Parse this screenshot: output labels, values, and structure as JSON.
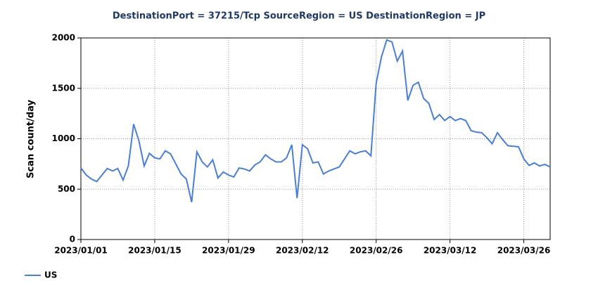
{
  "chart_data": {
    "type": "line",
    "title": "DestinationPort = 37215/Tcp SourceRegion = US DestinationRegion = JP",
    "y_label": "Scan count/day",
    "x": [
      "2023/01/01",
      "2023/01/02",
      "2023/01/03",
      "2023/01/04",
      "2023/01/05",
      "2023/01/06",
      "2023/01/07",
      "2023/01/08",
      "2023/01/09",
      "2023/01/10",
      "2023/01/11",
      "2023/01/12",
      "2023/01/13",
      "2023/01/14",
      "2023/01/15",
      "2023/01/16",
      "2023/01/17",
      "2023/01/18",
      "2023/01/19",
      "2023/01/20",
      "2023/01/21",
      "2023/01/22",
      "2023/01/23",
      "2023/01/24",
      "2023/01/25",
      "2023/01/26",
      "2023/01/27",
      "2023/01/28",
      "2023/01/29",
      "2023/01/30",
      "2023/01/31",
      "2023/02/01",
      "2023/02/02",
      "2023/02/03",
      "2023/02/04",
      "2023/02/05",
      "2023/02/06",
      "2023/02/07",
      "2023/02/08",
      "2023/02/09",
      "2023/02/10",
      "2023/02/11",
      "2023/02/12",
      "2023/02/13",
      "2023/02/14",
      "2023/02/15",
      "2023/02/16",
      "2023/02/17",
      "2023/02/18",
      "2023/02/19",
      "2023/02/20",
      "2023/02/21",
      "2023/02/22",
      "2023/02/23",
      "2023/02/24",
      "2023/02/25",
      "2023/02/26",
      "2023/02/27",
      "2023/02/28",
      "2023/03/01",
      "2023/03/02",
      "2023/03/03",
      "2023/03/04",
      "2023/03/05",
      "2023/03/06",
      "2023/03/07",
      "2023/03/08",
      "2023/03/09",
      "2023/03/10",
      "2023/03/11",
      "2023/03/12",
      "2023/03/13",
      "2023/03/14",
      "2023/03/15",
      "2023/03/16",
      "2023/03/17",
      "2023/03/18",
      "2023/03/19",
      "2023/03/20",
      "2023/03/21",
      "2023/03/22",
      "2023/03/23",
      "2023/03/24",
      "2023/03/25",
      "2023/03/26",
      "2023/03/27",
      "2023/03/28",
      "2023/03/29",
      "2023/03/30",
      "2023/03/31"
    ],
    "series": [
      {
        "name": "US",
        "color": "#4a7fd4",
        "values": [
          710,
          640,
          600,
          575,
          640,
          705,
          680,
          705,
          590,
          730,
          1145,
          980,
          730,
          855,
          810,
          800,
          880,
          850,
          750,
          650,
          600,
          370,
          870,
          770,
          720,
          790,
          610,
          670,
          640,
          620,
          710,
          700,
          680,
          740,
          770,
          840,
          800,
          770,
          770,
          810,
          940,
          410,
          940,
          900,
          760,
          770,
          650,
          680,
          700,
          720,
          800,
          880,
          850,
          870,
          880,
          830,
          1550,
          1810,
          1980,
          1960,
          1770,
          1870,
          1380,
          1530,
          1560,
          1400,
          1350,
          1190,
          1240,
          1180,
          1220,
          1180,
          1200,
          1180,
          1080,
          1065,
          1060,
          1010,
          950,
          1060,
          990,
          930,
          925,
          920,
          800,
          735,
          760,
          730,
          745,
          720
        ]
      }
    ],
    "xlim": [
      "2023/01/01",
      "2023/03/31"
    ],
    "xticks": [
      "2023/01/01",
      "2023/01/15",
      "2023/01/29",
      "2023/02/12",
      "2023/02/26",
      "2023/03/12",
      "2023/03/26"
    ],
    "ylim": [
      0,
      2000
    ],
    "yticks": [
      0,
      500,
      1000,
      1500,
      2000
    ],
    "grid": true,
    "legend": "bottom-left"
  }
}
